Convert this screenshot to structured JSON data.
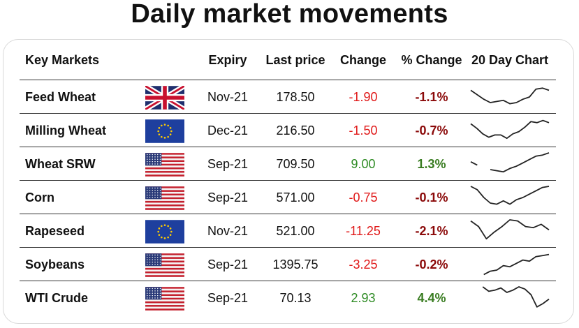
{
  "title": "Daily market movements",
  "headers": {
    "market": "Key Markets",
    "expiry": "Expiry",
    "last_price": "Last price",
    "change": "Change",
    "pct_change": "% Change",
    "chart": "20 Day Chart"
  },
  "rows": [
    {
      "name": "Feed Wheat",
      "flag": "uk-flag",
      "expiry": "Nov-21",
      "last_price": "178.50",
      "change": "-1.90",
      "pct": "-1.1%",
      "direction": "down",
      "spark": [
        0.2,
        0.4,
        0.6,
        0.75,
        0.7,
        0.65,
        0.8,
        0.75,
        0.6,
        0.5,
        0.15,
        0.1,
        0.2
      ]
    },
    {
      "name": "Milling Wheat",
      "flag": "eu-flag",
      "expiry": "Dec-21",
      "last_price": "216.50",
      "change": "-1.50",
      "pct": "-0.7%",
      "direction": "down",
      "spark": [
        0.2,
        0.4,
        0.65,
        0.8,
        0.7,
        0.7,
        0.85,
        0.65,
        0.55,
        0.35,
        0.1,
        0.15,
        0.05,
        0.15
      ]
    },
    {
      "name": "Wheat SRW",
      "flag": "us-flag",
      "expiry": "Sep-21",
      "last_price": "709.50",
      "change": "9.00",
      "pct": "1.3%",
      "direction": "up",
      "spark": [
        0.4,
        0.55,
        null,
        0.75,
        0.8,
        0.85,
        0.7,
        0.6,
        0.45,
        0.3,
        0.15,
        0.1,
        0.0
      ]
    },
    {
      "name": "Corn",
      "flag": "us-flag",
      "expiry": "Sep-21",
      "last_price": "571.00",
      "change": "-0.75",
      "pct": "-0.1%",
      "direction": "down",
      "spark": [
        0.0,
        0.15,
        0.5,
        0.75,
        0.8,
        0.65,
        0.8,
        0.6,
        0.5,
        0.35,
        0.2,
        0.05,
        0.0
      ]
    },
    {
      "name": "Rapeseed",
      "flag": "eu-flag",
      "expiry": "Nov-21",
      "last_price": "521.00",
      "change": "-11.25",
      "pct": "-2.1%",
      "direction": "down",
      "spark": [
        0.05,
        0.3,
        0.85,
        0.55,
        0.3,
        0.0,
        0.05,
        0.3,
        0.35,
        0.2,
        0.45
      ]
    },
    {
      "name": "Soybeans",
      "flag": "us-flag",
      "expiry": "Sep-21",
      "last_price": "1395.75",
      "change": "-3.25",
      "pct": "-0.2%",
      "direction": "down",
      "spark": [
        0.0,
        null,
        0.95,
        0.8,
        0.75,
        0.55,
        0.6,
        0.45,
        0.3,
        0.35,
        0.15,
        0.1,
        0.05
      ]
    },
    {
      "name": "WTI Crude",
      "flag": "us-flag",
      "expiry": "Sep-21",
      "last_price": "70.13",
      "change": "2.93",
      "pct": "4.4%",
      "direction": "up",
      "spark": [
        0.0,
        null,
        0.0,
        0.2,
        0.15,
        0.05,
        0.25,
        0.15,
        0.0,
        0.1,
        0.35,
        0.9,
        0.75,
        0.55
      ]
    }
  ]
}
